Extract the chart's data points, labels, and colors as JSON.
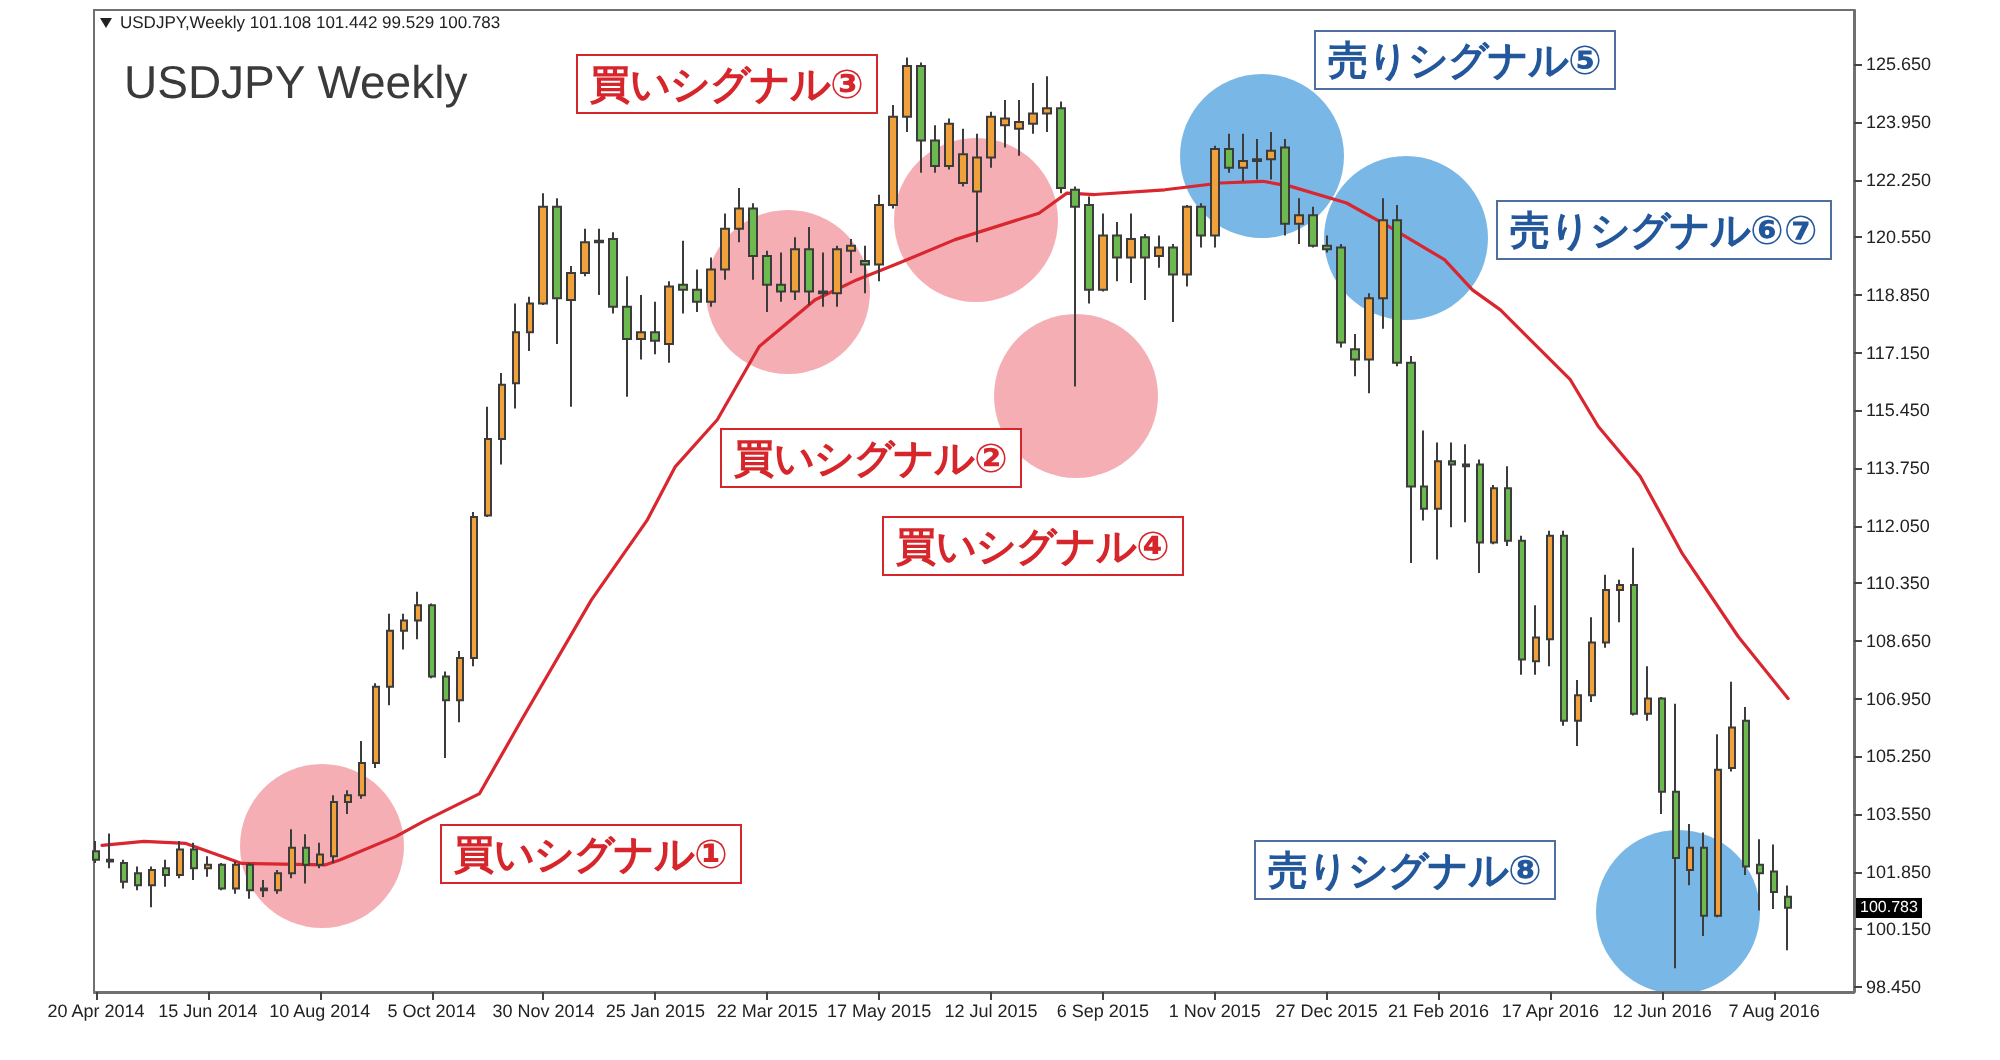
{
  "chart_data": {
    "type": "candlestick",
    "title": "USDJPY Weekly",
    "subtitle": "USDJPY,Weekly 101.108 101.442 99.529 100.783",
    "x": [
      "2014-04-20",
      "2014-04-27",
      "2014-05-04",
      "2014-05-11",
      "2014-05-18",
      "2014-05-25",
      "2014-06-01",
      "2014-06-08",
      "2014-06-15",
      "2014-06-22",
      "2014-06-29",
      "2014-07-06",
      "2014-07-13",
      "2014-07-20",
      "2014-07-27",
      "2014-08-03",
      "2014-08-10",
      "2014-08-17",
      "2014-08-24",
      "2014-08-31",
      "2014-09-07",
      "2014-09-14",
      "2014-09-21",
      "2014-09-28",
      "2014-10-05",
      "2014-10-12",
      "2014-10-19",
      "2014-10-26",
      "2014-11-02",
      "2014-11-09",
      "2014-11-16",
      "2014-11-23",
      "2014-11-30",
      "2014-12-07",
      "2014-12-14",
      "2014-12-21",
      "2014-12-28",
      "2015-01-04",
      "2015-01-11",
      "2015-01-18",
      "2015-01-25",
      "2015-02-01",
      "2015-02-08",
      "2015-02-15",
      "2015-02-22",
      "2015-03-01",
      "2015-03-08",
      "2015-03-15",
      "2015-03-22",
      "2015-03-29",
      "2015-04-05",
      "2015-04-12",
      "2015-04-19",
      "2015-04-26",
      "2015-05-03",
      "2015-05-10",
      "2015-05-17",
      "2015-05-24",
      "2015-05-31",
      "2015-06-07",
      "2015-06-14",
      "2015-06-21",
      "2015-06-28",
      "2015-07-05",
      "2015-07-12",
      "2015-07-19",
      "2015-07-26",
      "2015-08-02",
      "2015-08-09",
      "2015-08-16",
      "2015-08-23",
      "2015-08-30",
      "2015-09-06",
      "2015-09-13",
      "2015-09-20",
      "2015-09-27",
      "2015-10-04",
      "2015-10-11",
      "2015-10-18",
      "2015-10-25",
      "2015-11-01",
      "2015-11-08",
      "2015-11-15",
      "2015-11-22",
      "2015-11-29",
      "2015-12-06",
      "2015-12-13",
      "2015-12-20",
      "2015-12-27",
      "2016-01-03",
      "2016-01-10",
      "2016-01-17",
      "2016-01-24",
      "2016-01-31",
      "2016-02-07",
      "2016-02-14",
      "2016-02-21",
      "2016-02-28",
      "2016-03-06",
      "2016-03-13",
      "2016-03-20",
      "2016-03-27",
      "2016-04-03",
      "2016-04-10",
      "2016-04-17",
      "2016-04-24",
      "2016-05-01",
      "2016-05-08",
      "2016-05-15",
      "2016-05-22",
      "2016-05-29",
      "2016-06-05",
      "2016-06-12",
      "2016-06-19",
      "2016-06-26",
      "2016-07-03",
      "2016-07-10",
      "2016-07-17",
      "2016-07-24",
      "2016-07-31",
      "2016-08-07",
      "2016-08-14"
    ],
    "ohlc": [
      [
        102.45,
        102.75,
        102.1,
        102.2
      ],
      [
        102.2,
        102.97,
        101.95,
        102.15
      ],
      [
        102.1,
        102.2,
        101.35,
        101.55
      ],
      [
        101.8,
        102.0,
        101.3,
        101.45
      ],
      [
        101.45,
        102.0,
        100.8,
        101.9
      ],
      [
        101.95,
        102.2,
        101.4,
        101.75
      ],
      [
        101.75,
        102.75,
        101.65,
        102.5
      ],
      [
        102.5,
        102.7,
        101.6,
        101.95
      ],
      [
        101.95,
        102.3,
        101.7,
        102.05
      ],
      [
        102.05,
        102.1,
        101.3,
        101.35
      ],
      [
        101.35,
        102.15,
        101.2,
        102.05
      ],
      [
        102.05,
        102.1,
        101.05,
        101.3
      ],
      [
        101.3,
        101.6,
        101.1,
        101.35
      ],
      [
        101.3,
        101.9,
        101.2,
        101.8
      ],
      [
        101.8,
        103.1,
        101.65,
        102.55
      ],
      [
        102.55,
        102.95,
        101.5,
        102.05
      ],
      [
        102.05,
        102.7,
        101.95,
        102.35
      ],
      [
        102.3,
        104.1,
        102.1,
        103.9
      ],
      [
        103.9,
        104.25,
        103.55,
        104.1
      ],
      [
        104.1,
        105.7,
        104.0,
        105.05
      ],
      [
        105.05,
        107.4,
        104.9,
        107.3
      ],
      [
        107.3,
        109.45,
        106.75,
        108.95
      ],
      [
        108.95,
        109.45,
        108.4,
        109.25
      ],
      [
        109.25,
        110.1,
        108.7,
        109.7
      ],
      [
        109.7,
        109.75,
        107.55,
        107.6
      ],
      [
        107.6,
        107.75,
        105.2,
        106.9
      ],
      [
        106.9,
        108.35,
        106.25,
        108.15
      ],
      [
        108.15,
        112.45,
        107.9,
        112.3
      ],
      [
        112.35,
        115.55,
        112.3,
        114.6
      ],
      [
        114.6,
        116.55,
        113.85,
        116.2
      ],
      [
        116.25,
        118.6,
        115.5,
        117.75
      ],
      [
        117.75,
        118.8,
        117.2,
        118.6
      ],
      [
        118.6,
        121.85,
        118.55,
        121.45
      ],
      [
        121.45,
        121.7,
        117.4,
        118.75
      ],
      [
        118.7,
        119.7,
        115.55,
        119.5
      ],
      [
        119.5,
        120.8,
        119.4,
        120.4
      ],
      [
        120.4,
        120.8,
        118.85,
        120.45
      ],
      [
        120.5,
        120.7,
        118.3,
        118.5
      ],
      [
        118.5,
        119.4,
        115.85,
        117.55
      ],
      [
        117.55,
        118.85,
        116.95,
        117.75
      ],
      [
        117.75,
        118.65,
        117.1,
        117.5
      ],
      [
        117.4,
        119.25,
        116.85,
        119.1
      ],
      [
        119.15,
        120.45,
        118.3,
        119.0
      ],
      [
        119.0,
        119.6,
        118.35,
        118.65
      ],
      [
        118.65,
        119.95,
        118.5,
        119.6
      ],
      [
        119.6,
        121.25,
        119.3,
        120.8
      ],
      [
        120.8,
        122.0,
        120.4,
        121.4
      ],
      [
        121.4,
        121.55,
        119.3,
        120.0
      ],
      [
        120.0,
        120.15,
        118.35,
        119.15
      ],
      [
        119.15,
        120.1,
        118.65,
        118.95
      ],
      [
        118.95,
        120.55,
        118.7,
        120.2
      ],
      [
        120.2,
        120.85,
        118.55,
        118.95
      ],
      [
        118.95,
        120.1,
        118.5,
        118.9
      ],
      [
        118.9,
        120.3,
        118.5,
        120.2
      ],
      [
        120.15,
        120.5,
        119.5,
        120.3
      ],
      [
        119.85,
        120.3,
        118.9,
        119.75
      ],
      [
        119.75,
        121.8,
        119.25,
        121.5
      ],
      [
        121.5,
        124.45,
        121.4,
        124.1
      ],
      [
        124.1,
        125.85,
        123.65,
        125.6
      ],
      [
        125.6,
        125.7,
        122.45,
        123.4
      ],
      [
        123.4,
        123.85,
        122.45,
        122.65
      ],
      [
        122.65,
        124.05,
        122.55,
        123.9
      ],
      [
        122.15,
        123.75,
        122.05,
        123.0
      ],
      [
        121.9,
        123.6,
        120.4,
        122.9
      ],
      [
        122.9,
        124.25,
        122.6,
        124.1
      ],
      [
        123.85,
        124.6,
        123.2,
        124.05
      ],
      [
        123.75,
        124.6,
        122.95,
        123.95
      ],
      [
        123.9,
        125.1,
        123.6,
        124.2
      ],
      [
        124.2,
        125.3,
        123.65,
        124.35
      ],
      [
        124.35,
        124.55,
        121.85,
        122.0
      ],
      [
        121.95,
        122.05,
        116.15,
        121.45
      ],
      [
        121.5,
        121.75,
        118.6,
        119.0
      ],
      [
        119.0,
        121.25,
        118.95,
        120.6
      ],
      [
        120.6,
        121.0,
        119.25,
        119.95
      ],
      [
        119.95,
        121.25,
        119.2,
        120.5
      ],
      [
        120.55,
        120.65,
        118.7,
        119.95
      ],
      [
        120.0,
        120.6,
        119.65,
        120.25
      ],
      [
        120.25,
        120.35,
        118.05,
        119.45
      ],
      [
        119.45,
        121.5,
        119.1,
        121.45
      ],
      [
        121.45,
        121.55,
        120.25,
        120.6
      ],
      [
        120.6,
        123.25,
        120.25,
        123.15
      ],
      [
        123.15,
        123.6,
        122.45,
        122.6
      ],
      [
        122.6,
        123.6,
        122.2,
        122.8
      ],
      [
        122.8,
        123.45,
        122.25,
        122.85
      ],
      [
        122.85,
        123.65,
        122.25,
        123.1
      ],
      [
        123.2,
        123.45,
        120.6,
        120.95
      ],
      [
        120.95,
        121.7,
        120.35,
        121.2
      ],
      [
        121.2,
        121.45,
        120.25,
        120.3
      ],
      [
        120.3,
        120.6,
        120.1,
        120.2
      ],
      [
        120.25,
        120.35,
        117.3,
        117.45
      ],
      [
        117.25,
        117.7,
        116.45,
        116.95
      ],
      [
        116.95,
        118.9,
        115.95,
        118.75
      ],
      [
        118.75,
        121.7,
        117.85,
        121.05
      ],
      [
        121.05,
        121.5,
        116.75,
        116.85
      ],
      [
        116.85,
        117.05,
        110.95,
        113.2
      ],
      [
        113.2,
        114.85,
        112.2,
        112.55
      ],
      [
        112.55,
        114.5,
        111.05,
        113.95
      ],
      [
        113.95,
        114.5,
        112.0,
        113.85
      ],
      [
        113.85,
        114.45,
        112.15,
        113.8
      ],
      [
        113.85,
        114.0,
        110.65,
        111.55
      ],
      [
        111.55,
        113.25,
        111.5,
        113.15
      ],
      [
        113.15,
        113.8,
        111.45,
        111.6
      ],
      [
        111.6,
        111.75,
        107.65,
        108.1
      ],
      [
        108.05,
        109.7,
        107.65,
        108.75
      ],
      [
        108.7,
        111.9,
        107.9,
        111.75
      ],
      [
        111.75,
        111.9,
        106.15,
        106.3
      ],
      [
        106.3,
        107.5,
        105.55,
        107.05
      ],
      [
        107.05,
        109.35,
        106.85,
        108.6
      ],
      [
        108.6,
        110.6,
        108.45,
        110.15
      ],
      [
        110.15,
        110.45,
        109.2,
        110.3
      ],
      [
        110.3,
        111.4,
        106.45,
        106.5
      ],
      [
        106.5,
        107.9,
        106.3,
        106.95
      ],
      [
        106.95,
        107.0,
        103.55,
        104.2
      ],
      [
        104.2,
        106.8,
        99.0,
        102.25
      ],
      [
        101.9,
        103.25,
        101.45,
        102.55
      ],
      [
        102.55,
        103.0,
        99.95,
        100.55
      ],
      [
        100.55,
        105.9,
        100.5,
        104.85
      ],
      [
        104.9,
        107.45,
        104.8,
        106.1
      ],
      [
        106.3,
        106.7,
        101.75,
        102.0
      ],
      [
        102.05,
        102.8,
        100.7,
        101.8
      ],
      [
        101.85,
        102.65,
        100.75,
        101.25
      ],
      [
        101.108,
        101.442,
        99.529,
        100.783
      ]
    ],
    "colors": [
      "#6cb94f",
      "#6cb94f",
      "#6cb94f",
      "#6cb94f",
      "#f0a13c",
      "#6cb94f",
      "#f0a13c",
      "#6cb94f",
      "#f0a13c",
      "#6cb94f",
      "#f0a13c",
      "#6cb94f",
      "#f0a13c",
      "#f0a13c",
      "#f0a13c",
      "#6cb94f",
      "#f0a13c",
      "#f0a13c",
      "#f0a13c",
      "#f0a13c",
      "#f0a13c",
      "#f0a13c",
      "#f0a13c",
      "#f0a13c",
      "#6cb94f",
      "#6cb94f",
      "#f0a13c",
      "#f0a13c",
      "#f0a13c",
      "#f0a13c",
      "#f0a13c",
      "#f0a13c",
      "#f0a13c",
      "#6cb94f",
      "#f0a13c",
      "#f0a13c",
      "#f0a13c",
      "#6cb94f",
      "#6cb94f",
      "#f0a13c",
      "#6cb94f",
      "#f0a13c",
      "#6cb94f",
      "#6cb94f",
      "#f0a13c",
      "#f0a13c",
      "#f0a13c",
      "#6cb94f",
      "#6cb94f",
      "#6cb94f",
      "#f0a13c",
      "#6cb94f",
      "#6cb94f",
      "#f0a13c",
      "#f0a13c",
      "#6cb94f",
      "#f0a13c",
      "#f0a13c",
      "#f0a13c",
      "#6cb94f",
      "#6cb94f",
      "#f0a13c",
      "#f0a13c",
      "#f0a13c",
      "#f0a13c",
      "#f0a13c",
      "#f0a13c",
      "#f0a13c",
      "#f0a13c",
      "#6cb94f",
      "#6cb94f",
      "#6cb94f",
      "#f0a13c",
      "#6cb94f",
      "#f0a13c",
      "#6cb94f",
      "#f0a13c",
      "#6cb94f",
      "#f0a13c",
      "#6cb94f",
      "#f0a13c",
      "#6cb94f",
      "#f0a13c",
      "#f0a13c",
      "#f0a13c",
      "#6cb94f",
      "#f0a13c",
      "#6cb94f",
      "#6cb94f",
      "#6cb94f",
      "#6cb94f",
      "#f0a13c",
      "#f0a13c",
      "#6cb94f",
      "#6cb94f",
      "#6cb94f",
      "#f0a13c",
      "#6cb94f",
      "#6cb94f",
      "#6cb94f",
      "#f0a13c",
      "#6cb94f",
      "#6cb94f",
      "#f0a13c",
      "#f0a13c",
      "#6cb94f",
      "#f0a13c",
      "#f0a13c",
      "#f0a13c",
      "#f0a13c",
      "#6cb94f",
      "#f0a13c",
      "#6cb94f",
      "#6cb94f",
      "#f0a13c",
      "#6cb94f",
      "#f0a13c",
      "#f0a13c",
      "#6cb94f",
      "#6cb94f",
      "#6cb94f",
      "#6cb94f"
    ],
    "series": [
      {
        "type": "line",
        "color": "#d9262f",
        "x": [
          "2014-04-23",
          "2014-05-14",
          "2014-06-04",
          "2014-07-02",
          "2014-08-13",
          "2014-08-20",
          "2014-09-17",
          "2014-10-01",
          "2014-10-29",
          "2014-11-19",
          "2014-12-24",
          "2015-01-21",
          "2015-02-04",
          "2015-02-25",
          "2015-03-18",
          "2015-04-15",
          "2015-05-06",
          "2015-05-27",
          "2015-06-24",
          "2015-08-05",
          "2015-08-19",
          "2015-09-02",
          "2015-10-07",
          "2015-11-04",
          "2015-11-25",
          "2015-12-09",
          "2016-01-06",
          "2016-01-27",
          "2016-02-24",
          "2016-03-09",
          "2016-03-23",
          "2016-04-27",
          "2016-05-11",
          "2016-06-01",
          "2016-06-22",
          "2016-07-20",
          "2016-08-14"
        ],
        "values": [
          102.62,
          102.74,
          102.68,
          102.09,
          102.05,
          102.19,
          102.88,
          103.33,
          104.15,
          106.32,
          109.86,
          112.22,
          113.79,
          115.17,
          117.33,
          118.71,
          119.3,
          119.79,
          120.48,
          121.26,
          121.85,
          121.81,
          121.95,
          122.15,
          122.2,
          122.05,
          121.56,
          120.87,
          119.89,
          119.0,
          118.41,
          116.35,
          114.97,
          113.5,
          111.23,
          108.78,
          106.95
        ]
      }
    ],
    "xlim": [
      "2014-04-19",
      "2016-09-16"
    ],
    "xticks": [
      {
        "value": "2014-04-20",
        "label": "20 Apr 2014"
      },
      {
        "value": "2014-06-15",
        "label": "15 Jun 2014"
      },
      {
        "value": "2014-08-10",
        "label": "10 Aug 2014"
      },
      {
        "value": "2014-10-05",
        "label": "5 Oct 2014"
      },
      {
        "value": "2014-11-30",
        "label": "30 Nov 2014"
      },
      {
        "value": "2015-01-25",
        "label": "25 Jan 2015"
      },
      {
        "value": "2015-03-22",
        "label": "22 Mar 2015"
      },
      {
        "value": "2015-05-17",
        "label": "17 May 2015"
      },
      {
        "value": "2015-07-12",
        "label": "12 Jul 2015"
      },
      {
        "value": "2015-09-06",
        "label": "6 Sep 2015"
      },
      {
        "value": "2015-11-01",
        "label": "1 Nov 2015"
      },
      {
        "value": "2015-12-27",
        "label": "27 Dec 2015"
      },
      {
        "value": "2016-02-21",
        "label": "21 Feb 2016"
      },
      {
        "value": "2016-04-17",
        "label": "17 Apr 2016"
      },
      {
        "value": "2016-06-12",
        "label": "12 Jun 2016"
      },
      {
        "value": "2016-08-07",
        "label": "7 Aug 2016"
      }
    ],
    "ylim": [
      98.3,
      127.25
    ],
    "yticks": [
      {
        "value": 98.45,
        "label": "98.450"
      },
      {
        "value": 100.15,
        "label": "100.150"
      },
      {
        "value": 101.85,
        "label": "101.850"
      },
      {
        "value": 103.55,
        "label": "103.550"
      },
      {
        "value": 105.25,
        "label": "105.250"
      },
      {
        "value": 106.95,
        "label": "106.950"
      },
      {
        "value": 108.65,
        "label": "108.650"
      },
      {
        "value": 110.35,
        "label": "110.350"
      },
      {
        "value": 112.05,
        "label": "112.050"
      },
      {
        "value": 113.75,
        "label": "113.750"
      },
      {
        "value": 115.45,
        "label": "115.450"
      },
      {
        "value": 117.15,
        "label": "117.150"
      },
      {
        "value": 118.85,
        "label": "118.850"
      },
      {
        "value": 120.55,
        "label": "120.550"
      },
      {
        "value": 122.25,
        "label": "122.250"
      },
      {
        "value": 123.95,
        "label": "123.950"
      },
      {
        "value": 125.65,
        "label": "125.650"
      }
    ],
    "annotations": [
      "買いシグナル①",
      "買いシグナル②",
      "買いシグナル③",
      "買いシグナル④",
      "売りシグナル⑤",
      "売りシグナル⑥⑦",
      "売りシグナル⑧",
      {
        "text": "100.783",
        "y": 100.783
      }
    ]
  }
}
